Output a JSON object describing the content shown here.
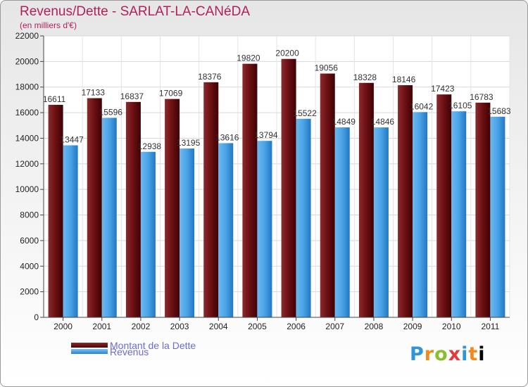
{
  "header": {
    "title": "Revenus/Dette - SARLAT-LA-CANéDA",
    "subtitle": "(en milliers d'€)"
  },
  "legend": {
    "items": [
      {
        "label": "Montant de la Dette",
        "color": "#6a0f12"
      },
      {
        "label": "Revenus",
        "color": "#4aa3e6"
      }
    ]
  },
  "logo": {
    "text": "Proxiti"
  },
  "chart_data": {
    "type": "bar",
    "title": "Revenus/Dette - SARLAT-LA-CANéDA",
    "ylabel": "(en milliers d'€)",
    "xlabel": "",
    "ylim": [
      0,
      22000
    ],
    "yticks": [
      0,
      2000,
      4000,
      6000,
      8000,
      10000,
      12000,
      14000,
      16000,
      18000,
      20000,
      22000
    ],
    "grid": true,
    "legend_position": "bottom-left",
    "categories": [
      "2000",
      "2001",
      "2002",
      "2003",
      "2004",
      "2005",
      "2006",
      "2007",
      "2008",
      "2009",
      "2010",
      "2011"
    ],
    "series": [
      {
        "name": "Montant de la Dette",
        "color": "#7a1a1e",
        "values": [
          16611,
          17133,
          16837,
          17069,
          18376,
          19820,
          20200,
          19056,
          18328,
          18146,
          17423,
          16783
        ]
      },
      {
        "name": "Revenus",
        "color": "#4aa3e6",
        "values": [
          13447,
          15596,
          12938,
          13195,
          13616,
          13794,
          15522,
          14849,
          14846,
          16042,
          16105,
          15683
        ]
      }
    ]
  }
}
